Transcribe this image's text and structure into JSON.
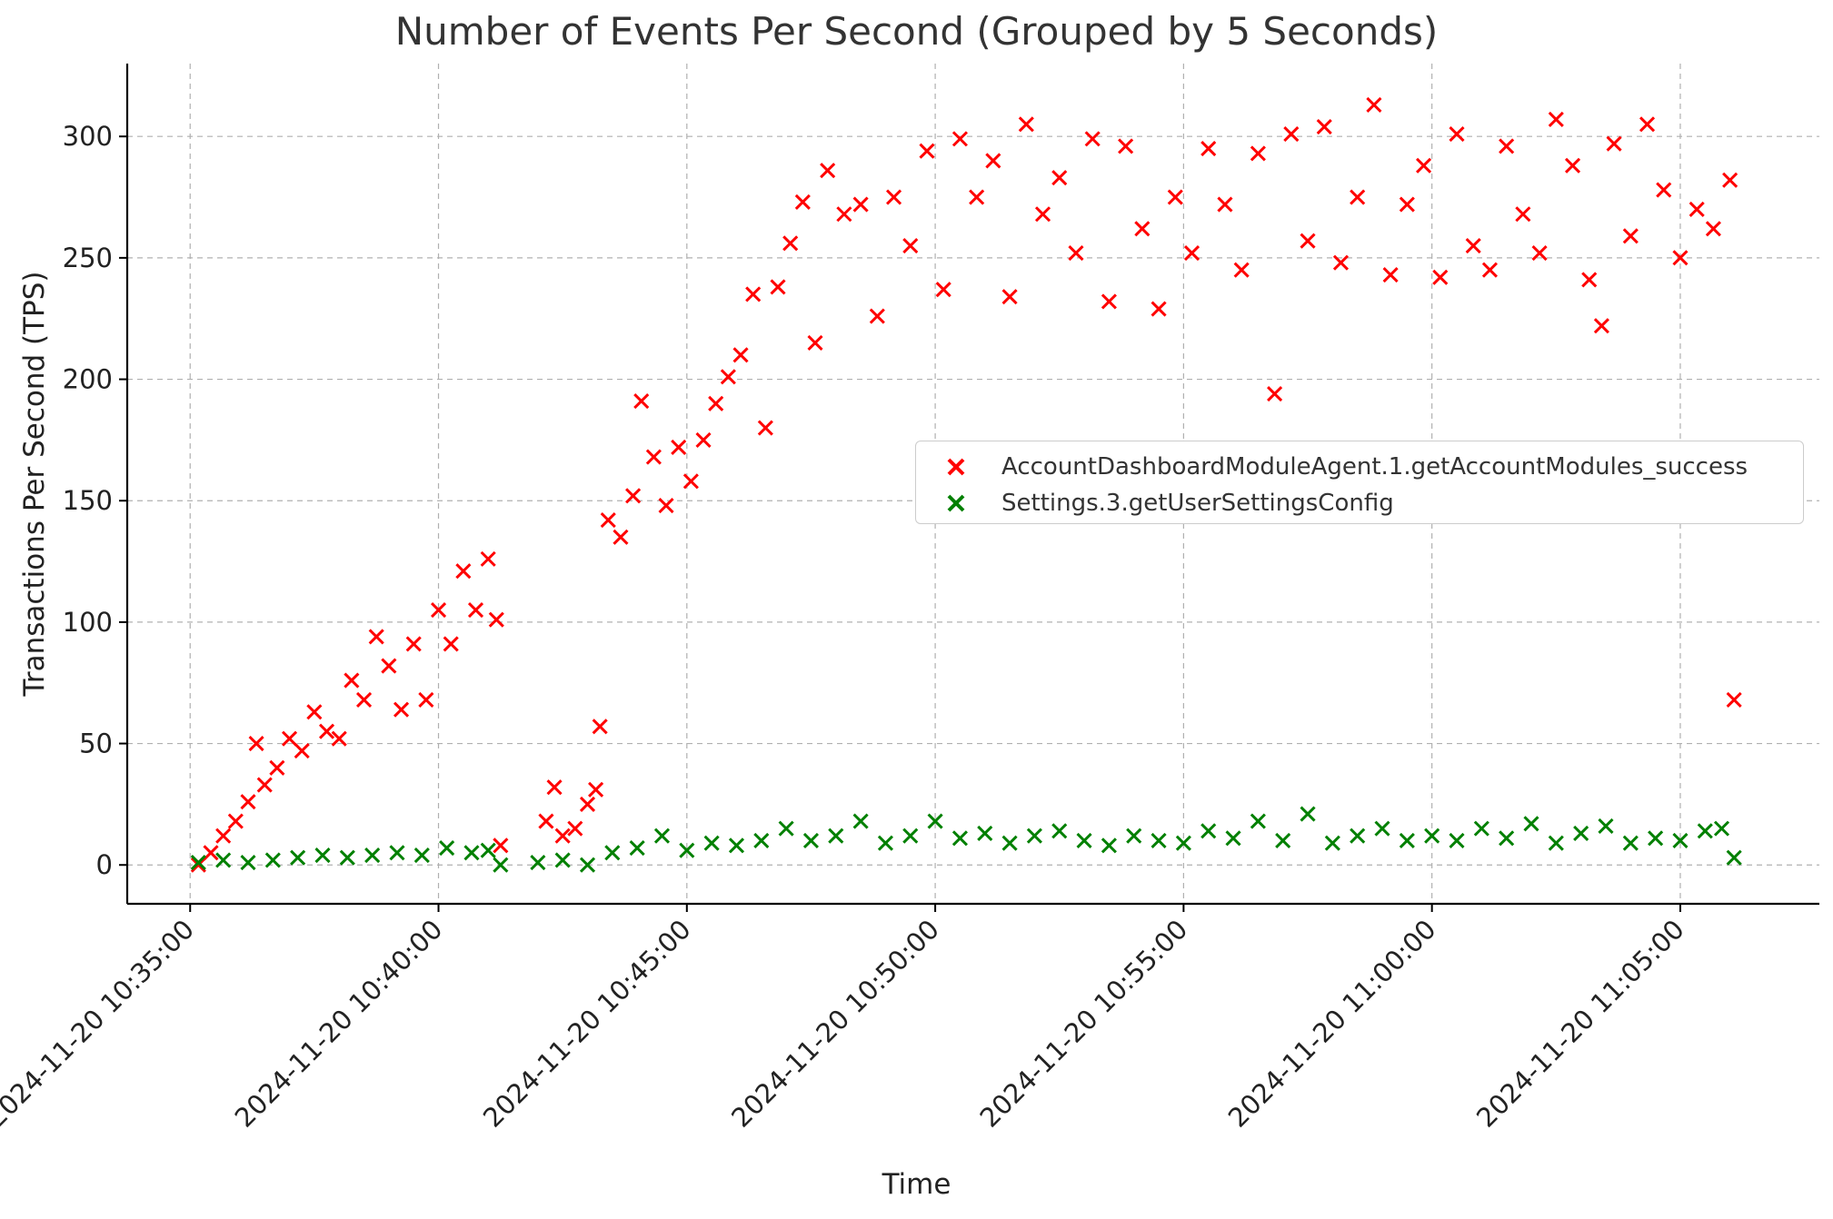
{
  "chart_data": {
    "type": "scatter",
    "title": "Number of Events Per Second (Grouped by 5 Seconds)",
    "xlabel": "Time",
    "ylabel": "Transactions Per Second (TPS)",
    "x_type": "time",
    "x_range": [
      "2024-11-20 10:33:44",
      "2024-11-20 11:07:48"
    ],
    "ylim": [
      -16,
      330
    ],
    "yticks": [
      0,
      50,
      100,
      150,
      200,
      250,
      300
    ],
    "xticks": [
      "2024-11-20 10:35:00",
      "2024-11-20 10:40:00",
      "2024-11-20 10:45:00",
      "2024-11-20 10:50:00",
      "2024-11-20 10:55:00",
      "2024-11-20 11:00:00",
      "2024-11-20 11:05:00"
    ],
    "grid": true,
    "legend_position": "center-right",
    "marker": "x",
    "series": [
      {
        "name": "AccountDashboardModuleAgent.1.getAccountModules_success",
        "color": "#ff0000",
        "points": [
          [
            "2024-11-20 10:35:10",
            0
          ],
          [
            "2024-11-20 10:35:25",
            5
          ],
          [
            "2024-11-20 10:35:40",
            12
          ],
          [
            "2024-11-20 10:35:55",
            18
          ],
          [
            "2024-11-20 10:36:10",
            26
          ],
          [
            "2024-11-20 10:36:20",
            50
          ],
          [
            "2024-11-20 10:36:30",
            33
          ],
          [
            "2024-11-20 10:36:45",
            40
          ],
          [
            "2024-11-20 10:37:00",
            52
          ],
          [
            "2024-11-20 10:37:15",
            47
          ],
          [
            "2024-11-20 10:37:30",
            63
          ],
          [
            "2024-11-20 10:37:45",
            55
          ],
          [
            "2024-11-20 10:38:00",
            52
          ],
          [
            "2024-11-20 10:38:15",
            76
          ],
          [
            "2024-11-20 10:38:30",
            68
          ],
          [
            "2024-11-20 10:38:45",
            94
          ],
          [
            "2024-11-20 10:39:00",
            82
          ],
          [
            "2024-11-20 10:39:15",
            64
          ],
          [
            "2024-11-20 10:39:30",
            91
          ],
          [
            "2024-11-20 10:39:45",
            68
          ],
          [
            "2024-11-20 10:40:00",
            105
          ],
          [
            "2024-11-20 10:40:15",
            91
          ],
          [
            "2024-11-20 10:40:30",
            121
          ],
          [
            "2024-11-20 10:40:45",
            105
          ],
          [
            "2024-11-20 10:41:00",
            126
          ],
          [
            "2024-11-20 10:41:10",
            101
          ],
          [
            "2024-11-20 10:41:15",
            8
          ],
          [
            "2024-11-20 10:42:10",
            18
          ],
          [
            "2024-11-20 10:42:20",
            32
          ],
          [
            "2024-11-20 10:42:30",
            12
          ],
          [
            "2024-11-20 10:42:45",
            15
          ],
          [
            "2024-11-20 10:43:00",
            25
          ],
          [
            "2024-11-20 10:43:10",
            31
          ],
          [
            "2024-11-20 10:43:15",
            57
          ],
          [
            "2024-11-20 10:43:25",
            142
          ],
          [
            "2024-11-20 10:43:40",
            135
          ],
          [
            "2024-11-20 10:43:55",
            152
          ],
          [
            "2024-11-20 10:44:05",
            191
          ],
          [
            "2024-11-20 10:44:20",
            168
          ],
          [
            "2024-11-20 10:44:35",
            148
          ],
          [
            "2024-11-20 10:44:50",
            172
          ],
          [
            "2024-11-20 10:45:05",
            158
          ],
          [
            "2024-11-20 10:45:20",
            175
          ],
          [
            "2024-11-20 10:45:35",
            190
          ],
          [
            "2024-11-20 10:45:50",
            201
          ],
          [
            "2024-11-20 10:46:05",
            210
          ],
          [
            "2024-11-20 10:46:20",
            235
          ],
          [
            "2024-11-20 10:46:35",
            180
          ],
          [
            "2024-11-20 10:46:50",
            238
          ],
          [
            "2024-11-20 10:47:05",
            256
          ],
          [
            "2024-11-20 10:47:20",
            273
          ],
          [
            "2024-11-20 10:47:35",
            215
          ],
          [
            "2024-11-20 10:47:50",
            286
          ],
          [
            "2024-11-20 10:48:10",
            268
          ],
          [
            "2024-11-20 10:48:30",
            272
          ],
          [
            "2024-11-20 10:48:50",
            226
          ],
          [
            "2024-11-20 10:49:10",
            275
          ],
          [
            "2024-11-20 10:49:30",
            255
          ],
          [
            "2024-11-20 10:49:50",
            294
          ],
          [
            "2024-11-20 10:50:10",
            237
          ],
          [
            "2024-11-20 10:50:30",
            299
          ],
          [
            "2024-11-20 10:50:50",
            275
          ],
          [
            "2024-11-20 10:51:10",
            290
          ],
          [
            "2024-11-20 10:51:30",
            234
          ],
          [
            "2024-11-20 10:51:50",
            305
          ],
          [
            "2024-11-20 10:52:10",
            268
          ],
          [
            "2024-11-20 10:52:30",
            283
          ],
          [
            "2024-11-20 10:52:50",
            252
          ],
          [
            "2024-11-20 10:53:10",
            299
          ],
          [
            "2024-11-20 10:53:30",
            232
          ],
          [
            "2024-11-20 10:53:50",
            296
          ],
          [
            "2024-11-20 10:54:10",
            262
          ],
          [
            "2024-11-20 10:54:30",
            229
          ],
          [
            "2024-11-20 10:54:50",
            275
          ],
          [
            "2024-11-20 10:55:10",
            252
          ],
          [
            "2024-11-20 10:55:30",
            295
          ],
          [
            "2024-11-20 10:55:50",
            272
          ],
          [
            "2024-11-20 10:56:10",
            245
          ],
          [
            "2024-11-20 10:56:30",
            293
          ],
          [
            "2024-11-20 10:56:50",
            194
          ],
          [
            "2024-11-20 10:57:10",
            301
          ],
          [
            "2024-11-20 10:57:30",
            257
          ],
          [
            "2024-11-20 10:57:50",
            304
          ],
          [
            "2024-11-20 10:58:10",
            248
          ],
          [
            "2024-11-20 10:58:30",
            275
          ],
          [
            "2024-11-20 10:58:50",
            313
          ],
          [
            "2024-11-20 10:59:10",
            243
          ],
          [
            "2024-11-20 10:59:30",
            272
          ],
          [
            "2024-11-20 10:59:50",
            288
          ],
          [
            "2024-11-20 11:00:10",
            242
          ],
          [
            "2024-11-20 11:00:30",
            301
          ],
          [
            "2024-11-20 11:00:50",
            255
          ],
          [
            "2024-11-20 11:01:10",
            245
          ],
          [
            "2024-11-20 11:01:30",
            296
          ],
          [
            "2024-11-20 11:01:50",
            268
          ],
          [
            "2024-11-20 11:02:10",
            252
          ],
          [
            "2024-11-20 11:02:30",
            307
          ],
          [
            "2024-11-20 11:02:50",
            288
          ],
          [
            "2024-11-20 11:03:10",
            241
          ],
          [
            "2024-11-20 11:03:25",
            222
          ],
          [
            "2024-11-20 11:03:40",
            297
          ],
          [
            "2024-11-20 11:04:00",
            259
          ],
          [
            "2024-11-20 11:04:20",
            305
          ],
          [
            "2024-11-20 11:04:40",
            278
          ],
          [
            "2024-11-20 11:05:00",
            250
          ],
          [
            "2024-11-20 11:05:20",
            270
          ],
          [
            "2024-11-20 11:05:40",
            262
          ],
          [
            "2024-11-20 11:06:00",
            282
          ],
          [
            "2024-11-20 11:06:05",
            68
          ]
        ]
      },
      {
        "name": "Settings.3.getUserSettingsConfig",
        "color": "#008000",
        "points": [
          [
            "2024-11-20 10:35:10",
            1
          ],
          [
            "2024-11-20 10:35:40",
            2
          ],
          [
            "2024-11-20 10:36:10",
            1
          ],
          [
            "2024-11-20 10:36:40",
            2
          ],
          [
            "2024-11-20 10:37:10",
            3
          ],
          [
            "2024-11-20 10:37:40",
            4
          ],
          [
            "2024-11-20 10:38:10",
            3
          ],
          [
            "2024-11-20 10:38:40",
            4
          ],
          [
            "2024-11-20 10:39:10",
            5
          ],
          [
            "2024-11-20 10:39:40",
            4
          ],
          [
            "2024-11-20 10:40:10",
            7
          ],
          [
            "2024-11-20 10:40:40",
            5
          ],
          [
            "2024-11-20 10:41:00",
            6
          ],
          [
            "2024-11-20 10:41:15",
            0
          ],
          [
            "2024-11-20 10:42:00",
            1
          ],
          [
            "2024-11-20 10:42:30",
            2
          ],
          [
            "2024-11-20 10:43:00",
            0
          ],
          [
            "2024-11-20 10:43:30",
            5
          ],
          [
            "2024-11-20 10:44:00",
            7
          ],
          [
            "2024-11-20 10:44:30",
            12
          ],
          [
            "2024-11-20 10:45:00",
            6
          ],
          [
            "2024-11-20 10:45:30",
            9
          ],
          [
            "2024-11-20 10:46:00",
            8
          ],
          [
            "2024-11-20 10:46:30",
            10
          ],
          [
            "2024-11-20 10:47:00",
            15
          ],
          [
            "2024-11-20 10:47:30",
            10
          ],
          [
            "2024-11-20 10:48:00",
            12
          ],
          [
            "2024-11-20 10:48:30",
            18
          ],
          [
            "2024-11-20 10:49:00",
            9
          ],
          [
            "2024-11-20 10:49:30",
            12
          ],
          [
            "2024-11-20 10:50:00",
            18
          ],
          [
            "2024-11-20 10:50:30",
            11
          ],
          [
            "2024-11-20 10:51:00",
            13
          ],
          [
            "2024-11-20 10:51:30",
            9
          ],
          [
            "2024-11-20 10:52:00",
            12
          ],
          [
            "2024-11-20 10:52:30",
            14
          ],
          [
            "2024-11-20 10:53:00",
            10
          ],
          [
            "2024-11-20 10:53:30",
            8
          ],
          [
            "2024-11-20 10:54:00",
            12
          ],
          [
            "2024-11-20 10:54:30",
            10
          ],
          [
            "2024-11-20 10:55:00",
            9
          ],
          [
            "2024-11-20 10:55:30",
            14
          ],
          [
            "2024-11-20 10:56:00",
            11
          ],
          [
            "2024-11-20 10:56:30",
            18
          ],
          [
            "2024-11-20 10:57:00",
            10
          ],
          [
            "2024-11-20 10:57:30",
            21
          ],
          [
            "2024-11-20 10:58:00",
            9
          ],
          [
            "2024-11-20 10:58:30",
            12
          ],
          [
            "2024-11-20 10:59:00",
            15
          ],
          [
            "2024-11-20 10:59:30",
            10
          ],
          [
            "2024-11-20 11:00:00",
            12
          ],
          [
            "2024-11-20 11:00:30",
            10
          ],
          [
            "2024-11-20 11:01:00",
            15
          ],
          [
            "2024-11-20 11:01:30",
            11
          ],
          [
            "2024-11-20 11:02:00",
            17
          ],
          [
            "2024-11-20 11:02:30",
            9
          ],
          [
            "2024-11-20 11:03:00",
            13
          ],
          [
            "2024-11-20 11:03:30",
            16
          ],
          [
            "2024-11-20 11:04:00",
            9
          ],
          [
            "2024-11-20 11:04:30",
            11
          ],
          [
            "2024-11-20 11:05:00",
            10
          ],
          [
            "2024-11-20 11:05:30",
            14
          ],
          [
            "2024-11-20 11:05:50",
            15
          ],
          [
            "2024-11-20 11:06:05",
            3
          ]
        ]
      }
    ]
  }
}
